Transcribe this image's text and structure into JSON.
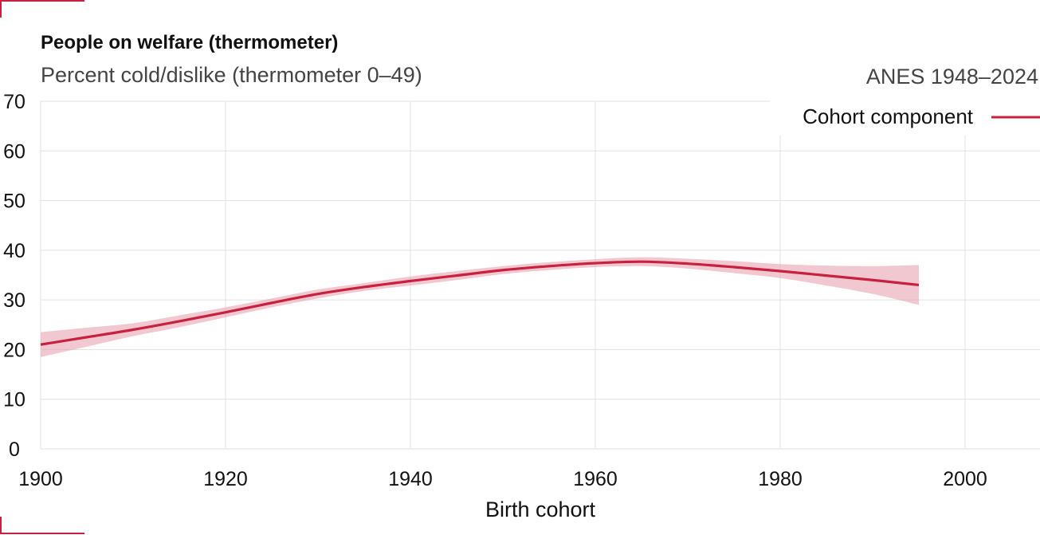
{
  "header": {
    "title": "People on welfare (thermometer)",
    "subtitle": "Percent cold/dislike (thermometer 0–49)",
    "source": "ANES 1948–2024"
  },
  "colors": {
    "accent": "#c8213f",
    "band": "#e8a3b0",
    "grid": "#e0e0e0"
  },
  "chart_data": {
    "type": "line",
    "title": "People on welfare (thermometer)",
    "subtitle": "Percent cold/dislike (thermometer 0–49)",
    "xlabel": "Birth cohort",
    "ylabel": "",
    "xlim": [
      1900,
      2008
    ],
    "ylim": [
      0,
      70
    ],
    "x_ticks": [
      1900,
      1920,
      1940,
      1960,
      1980,
      2000
    ],
    "y_ticks": [
      0,
      10,
      20,
      30,
      40,
      50,
      60,
      70
    ],
    "grid": true,
    "legend": {
      "position": "top-right",
      "entries": [
        "Cohort component"
      ]
    },
    "series": [
      {
        "name": "Cohort component",
        "color": "#c8213f",
        "x": [
          1900,
          1905,
          1910,
          1915,
          1920,
          1925,
          1930,
          1935,
          1940,
          1945,
          1950,
          1955,
          1960,
          1965,
          1970,
          1975,
          1980,
          1985,
          1990,
          1995
        ],
        "y": [
          21.0,
          22.5,
          24.0,
          25.7,
          27.5,
          29.4,
          31.2,
          32.6,
          33.8,
          34.9,
          36.0,
          36.8,
          37.4,
          37.7,
          37.3,
          36.6,
          35.8,
          34.9,
          34.0,
          33.0
        ],
        "lower": [
          18.5,
          20.6,
          22.7,
          24.5,
          26.5,
          28.5,
          30.3,
          31.8,
          32.9,
          34.0,
          35.2,
          36.0,
          36.6,
          36.8,
          36.3,
          35.4,
          34.4,
          32.9,
          31.2,
          29.0
        ],
        "upper": [
          23.5,
          24.4,
          25.3,
          26.9,
          28.5,
          30.3,
          32.1,
          33.4,
          34.7,
          35.8,
          36.8,
          37.6,
          38.2,
          38.6,
          38.3,
          37.8,
          37.2,
          36.9,
          36.8,
          37.0
        ]
      }
    ]
  }
}
